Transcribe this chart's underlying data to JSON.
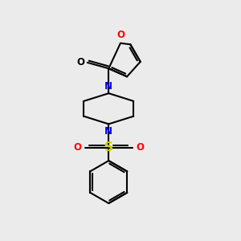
{
  "bg_color": "#ebebeb",
  "black": "#000000",
  "blue": "#0000ff",
  "red": "#ff0000",
  "yellow_s": "#cccc00",
  "line_width": 1.5,
  "figsize": [
    3.0,
    3.0
  ],
  "dpi": 100,
  "xlim": [
    0,
    10
  ],
  "ylim": [
    0,
    10
  ]
}
